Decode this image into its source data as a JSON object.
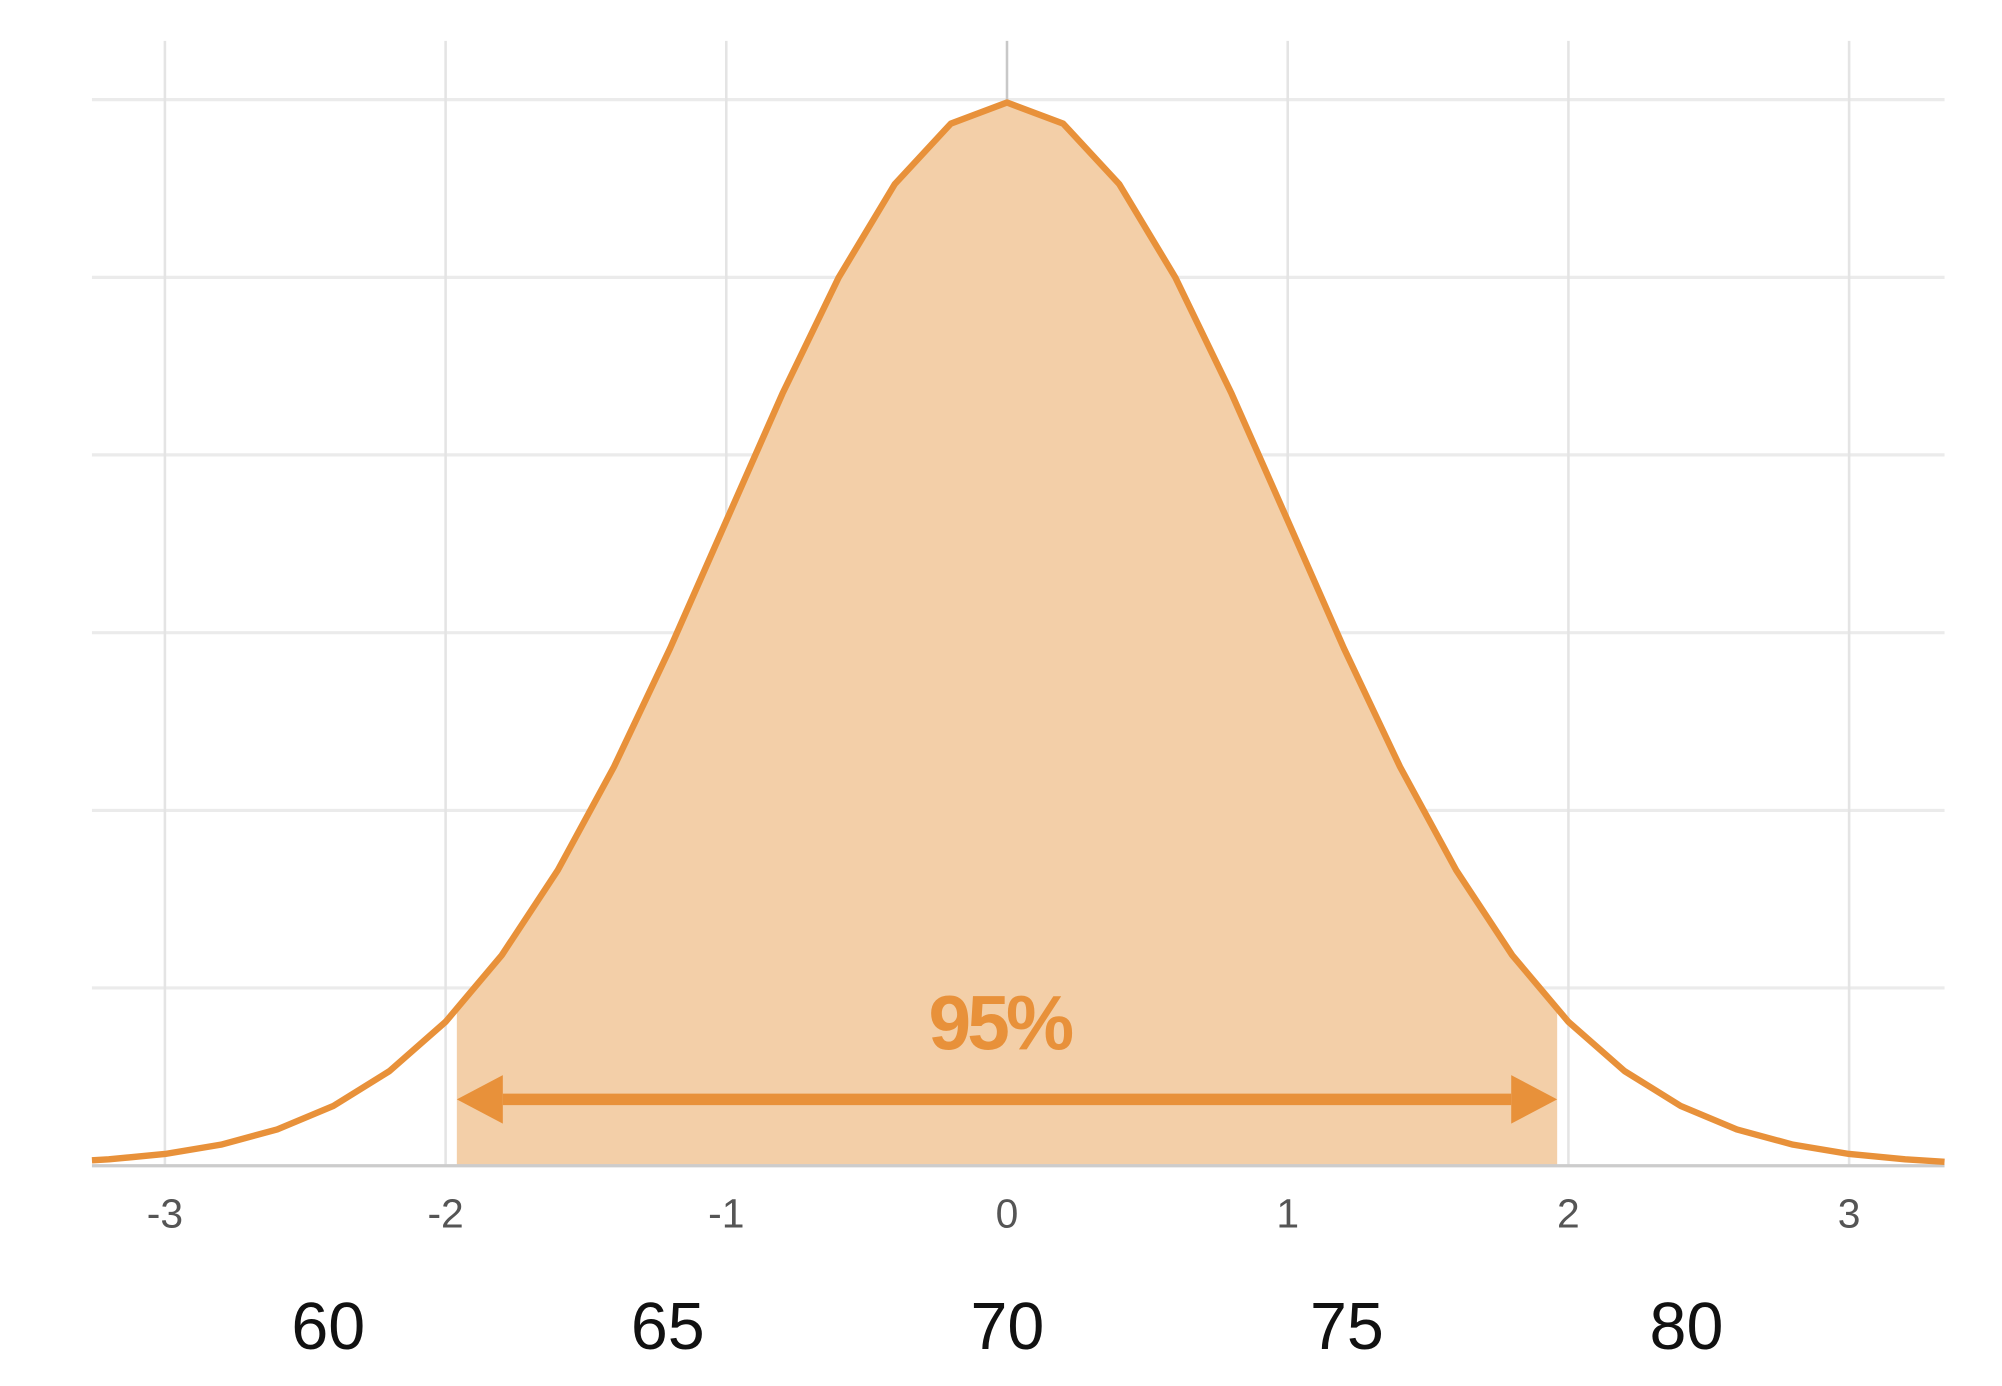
{
  "chart_data": {
    "type": "area",
    "x": [
      -3.26,
      -3.2,
      -3.0,
      -2.8,
      -2.6,
      -2.4,
      -2.2,
      -2.0,
      -1.8,
      -1.6,
      -1.4,
      -1.2,
      -1.0,
      -0.8,
      -0.6,
      -0.4,
      -0.2,
      0,
      0.2,
      0.4,
      0.6,
      0.8,
      1.0,
      1.2,
      1.4,
      1.6,
      1.8,
      2.0,
      2.2,
      2.4,
      2.6,
      2.8,
      3.0,
      3.2,
      3.34
    ],
    "values": [
      0.002,
      0.0024,
      0.0044,
      0.0079,
      0.0136,
      0.0224,
      0.0355,
      0.054,
      0.079,
      0.1109,
      0.1497,
      0.1942,
      0.242,
      0.2897,
      0.3332,
      0.3683,
      0.391,
      0.3989,
      0.391,
      0.3683,
      0.3332,
      0.2897,
      0.242,
      0.1942,
      0.1497,
      0.1109,
      0.079,
      0.054,
      0.0355,
      0.0224,
      0.0136,
      0.0079,
      0.0044,
      0.0024,
      0.0015
    ],
    "color": "#e8913a",
    "fill_color": "#f3cfa8",
    "xlim": [
      -3.26,
      3.34
    ],
    "xticks": [
      -3,
      -2,
      -1,
      0,
      1,
      2,
      3
    ],
    "x2lim": [
      56.52,
      83.8
    ],
    "x2ticks": [
      60,
      65,
      70,
      75,
      80
    ],
    "ylim": [
      0,
      0.4
    ],
    "yticks": [
      0.0667,
      0.1333,
      0.2,
      0.2667,
      0.3333,
      0.4
    ],
    "grid": true,
    "annotation": {
      "text": "95%",
      "interval": [
        -1.96,
        1.96
      ]
    }
  }
}
